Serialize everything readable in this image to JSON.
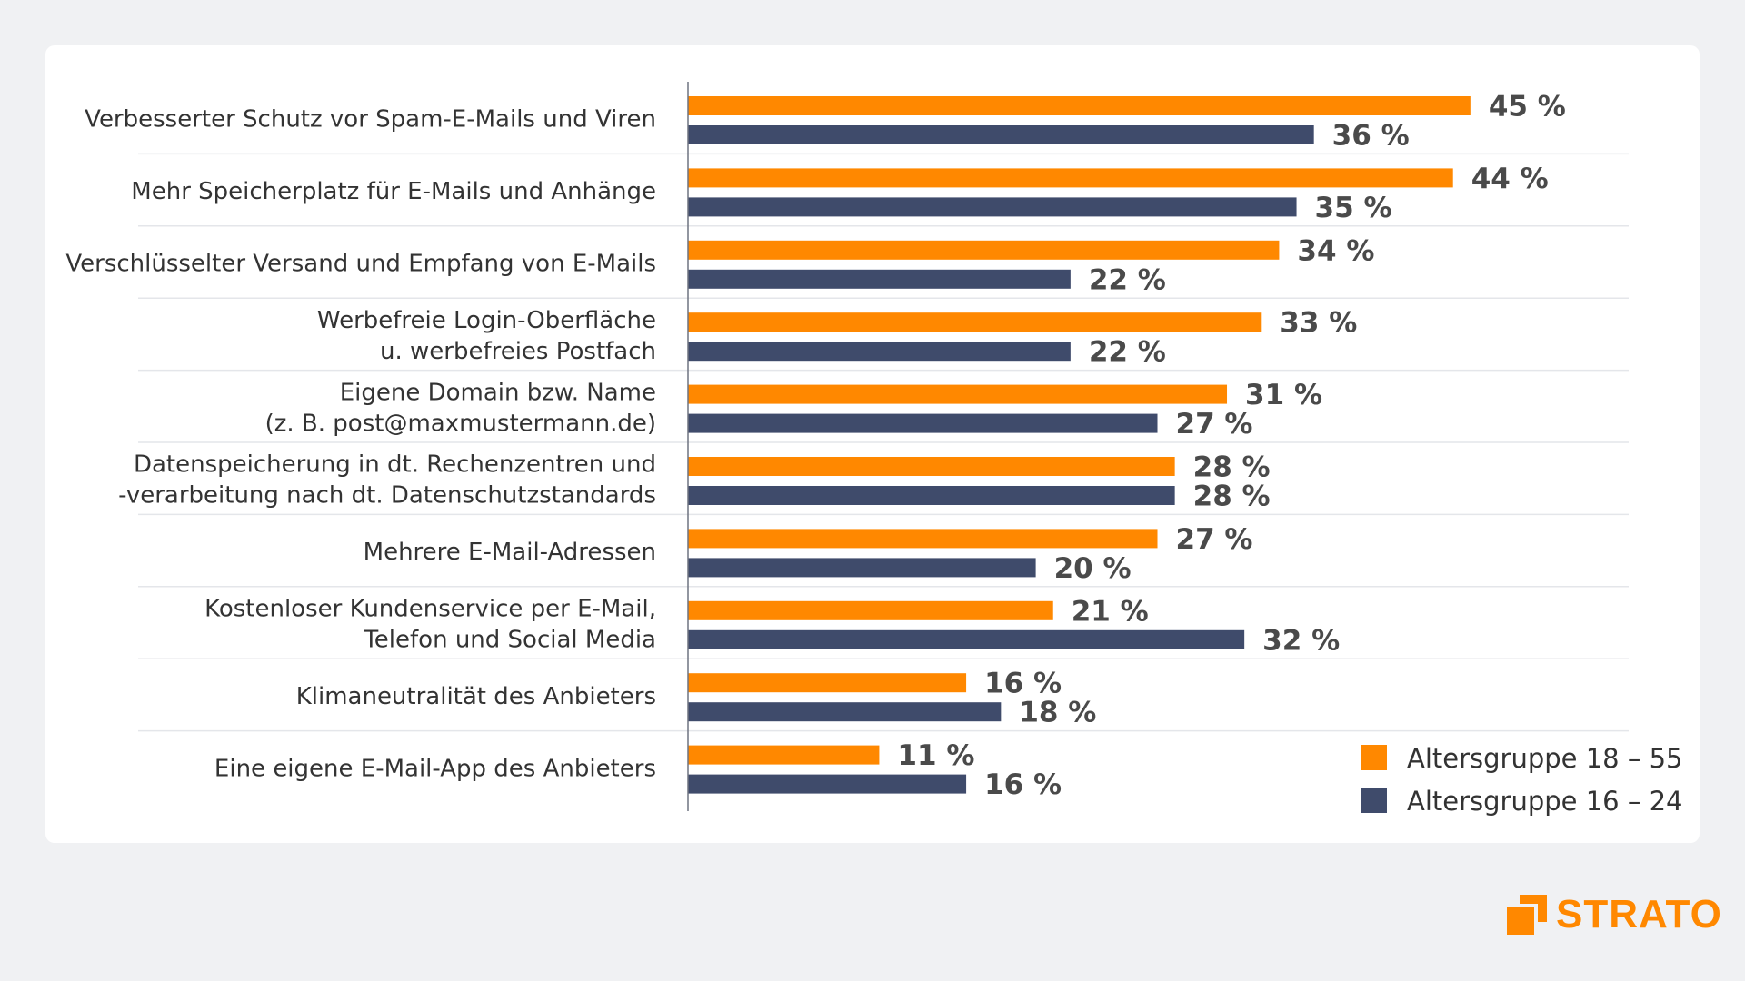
{
  "chart_data": {
    "type": "bar",
    "orientation": "horizontal",
    "categories": [
      [
        "Verbesserter Schutz vor Spam-E-Mails und Viren"
      ],
      [
        "Mehr Speicherplatz für E-Mails und Anhänge"
      ],
      [
        "Verschlüsselter Versand und Empfang von E-Mails"
      ],
      [
        "Werbefreie Login-Oberfläche",
        "u. werbefreies Postfach"
      ],
      [
        "Eigene Domain bzw. Name",
        "(z. B. post@maxmustermann.de)"
      ],
      [
        "Datenspeicherung in dt. Rechenzentren und",
        "-verarbeitung nach dt. Datenschutzstandards"
      ],
      [
        "Mehrere E-Mail-Adressen"
      ],
      [
        "Kostenloser Kundenservice per E-Mail,",
        "Telefon und Social Media"
      ],
      [
        "Klimaneutralität des Anbieters"
      ],
      [
        "Eine eigene E-Mail-App des Anbieters"
      ]
    ],
    "series": [
      {
        "name": "Altersgruppe 18 – 55",
        "color": "#ff8800",
        "values": [
          45,
          44,
          34,
          33,
          31,
          28,
          27,
          21,
          16,
          11
        ]
      },
      {
        "name": "Altersgruppe 16 – 24",
        "color": "#3f4b6b",
        "values": [
          36,
          35,
          22,
          22,
          27,
          28,
          20,
          32,
          18,
          16
        ]
      }
    ],
    "value_suffix": " %",
    "xlim": [
      0,
      45
    ],
    "legend_position": "bottom-right",
    "grid": false
  },
  "brand": {
    "logo_text": "STRATO",
    "color": "#ff8800"
  }
}
